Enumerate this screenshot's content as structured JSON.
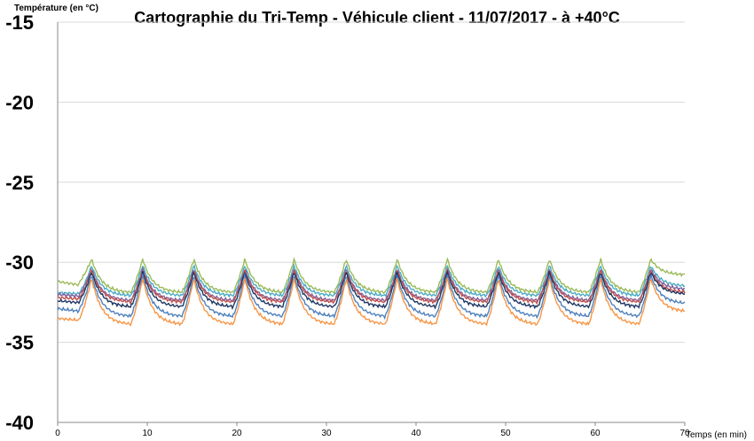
{
  "chart_data": {
    "type": "line",
    "title": "Cartographie du Tri-Temp - Véhicule client - 11/07/2017 - à +40°C",
    "ylabel": "Température (en °C)",
    "xlabel": "Temps (en min)",
    "xlim": [
      0,
      70
    ],
    "ylim": [
      -40,
      -15
    ],
    "x_ticks": [
      "0",
      "10",
      "20",
      "30",
      "40",
      "50",
      "60",
      "70"
    ],
    "y_ticks": [
      "-15",
      "-20",
      "-25",
      "-30",
      "-35",
      "-40"
    ],
    "grid": "horizontal",
    "legend": "none",
    "cycle_peaks_min": [
      3.8,
      9.5,
      15.2,
      20.9,
      26.4,
      32.2,
      37.9,
      43.5,
      49.2,
      54.9,
      60.6,
      66.2
    ],
    "series": [
      {
        "color": "#9BBB59",
        "start": -31.2,
        "peak": -29.8,
        "trough": -31.9,
        "end": -30.8
      },
      {
        "color": "#4BACC6",
        "start": -31.9,
        "peak": -30.2,
        "trough": -32.1,
        "end": -31.5
      },
      {
        "color": "#8064A2",
        "start": -32.0,
        "peak": -30.4,
        "trough": -32.4,
        "end": -31.7
      },
      {
        "color": "#C0504D",
        "start": -32.2,
        "peak": -30.5,
        "trough": -32.5,
        "end": -31.9
      },
      {
        "color": "#1F3864",
        "start": -32.4,
        "peak": -30.6,
        "trough": -32.8,
        "end": -32.0
      },
      {
        "color": "#4F81BD",
        "start": -32.9,
        "peak": -30.8,
        "trough": -33.4,
        "end": -32.6
      },
      {
        "color": "#F79646",
        "start": -33.5,
        "peak": -31.0,
        "trough": -33.9,
        "end": -33.1
      }
    ]
  }
}
